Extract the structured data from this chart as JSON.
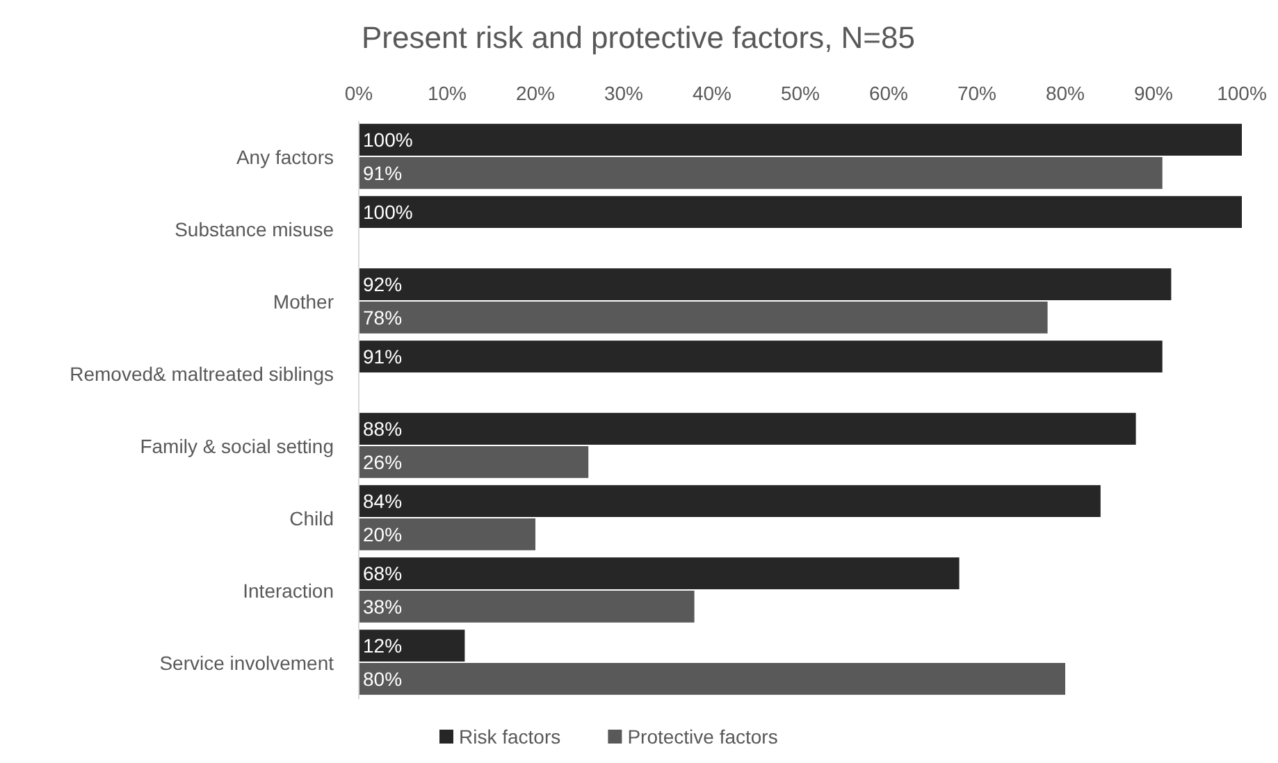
{
  "chart_data": {
    "type": "bar",
    "orientation": "horizontal",
    "title": "Present risk and protective factors, N=85",
    "categories": [
      "Any factors",
      "Substance misuse",
      "Mother",
      "Removed& maltreated siblings",
      "Family & social setting",
      "Child",
      "Interaction",
      "Service involvement"
    ],
    "series": [
      {
        "name": "Risk factors",
        "color": "#262626",
        "values": [
          100,
          100,
          92,
          91,
          88,
          84,
          68,
          12
        ],
        "value_labels": [
          "100%",
          "100%",
          "92%",
          "91%",
          "88%",
          "84%",
          "68%",
          "12%"
        ]
      },
      {
        "name": "Protective factors",
        "color": "#595959",
        "values": [
          91,
          null,
          78,
          null,
          26,
          20,
          38,
          80
        ],
        "value_labels": [
          "91%",
          null,
          "78%",
          null,
          "26%",
          "20%",
          "38%",
          "80%"
        ]
      }
    ],
    "xlim": [
      0,
      100
    ],
    "xticks": [
      {
        "value": 0,
        "label": "0%"
      },
      {
        "value": 10,
        "label": "10%"
      },
      {
        "value": 20,
        "label": "20%"
      },
      {
        "value": 30,
        "label": "30%"
      },
      {
        "value": 40,
        "label": "40%"
      },
      {
        "value": 50,
        "label": "50%"
      },
      {
        "value": 60,
        "label": "60%"
      },
      {
        "value": 70,
        "label": "70%"
      },
      {
        "value": 80,
        "label": "80%"
      },
      {
        "value": 90,
        "label": "90%"
      },
      {
        "value": 100,
        "label": "100%"
      }
    ],
    "grid": false,
    "legend": "bottom"
  }
}
